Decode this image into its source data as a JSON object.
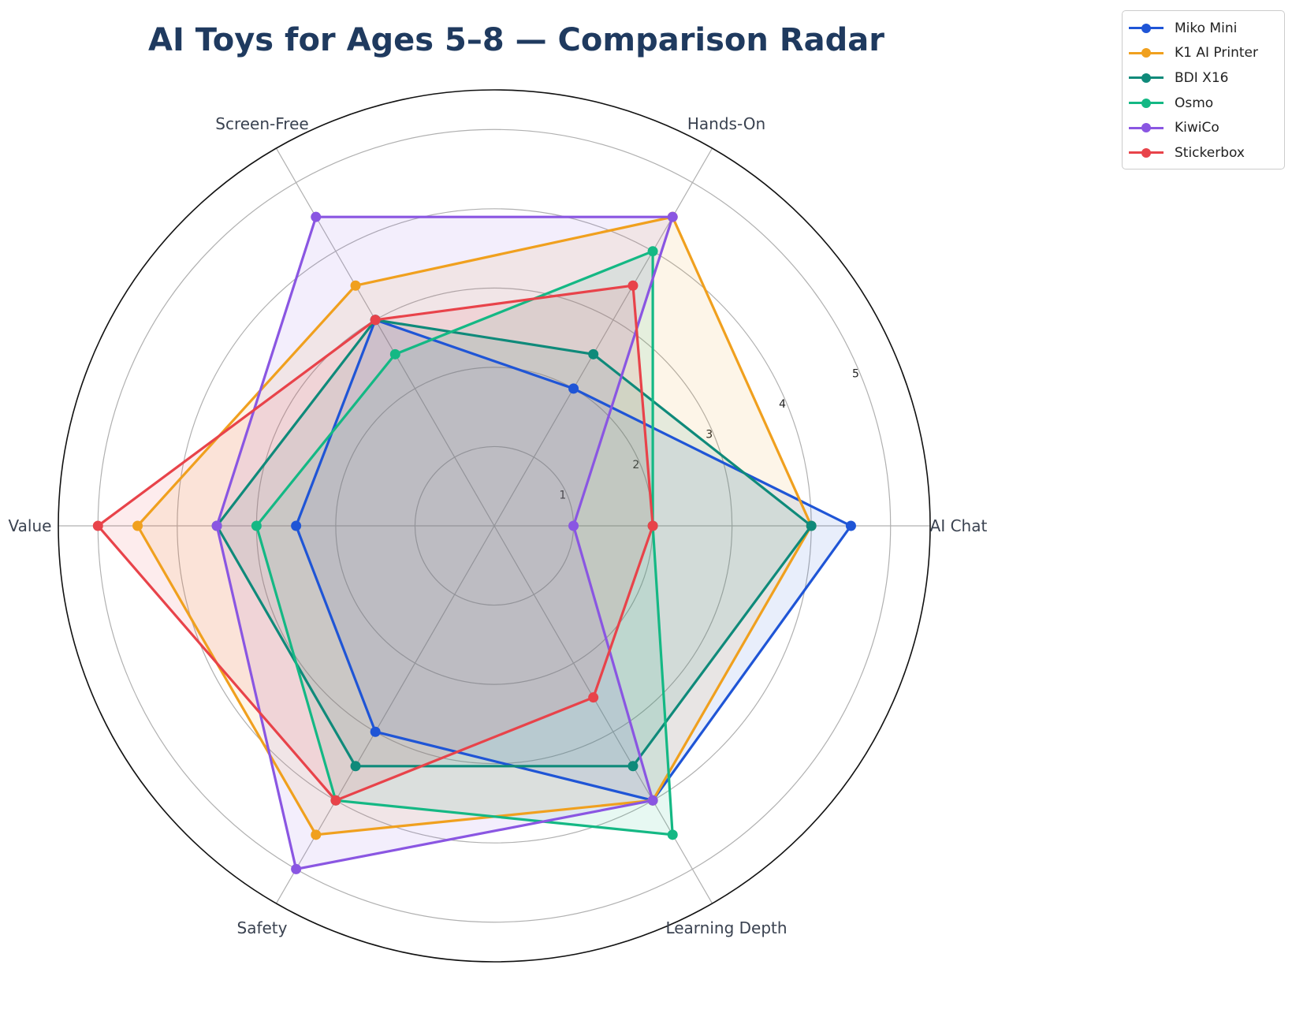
{
  "chart_data": {
    "type": "radar",
    "title": "AI Toys for Ages 5–8 — Comparison Radar",
    "axes": [
      "AI Chat",
      "Hands-On",
      "Screen-Free",
      "Value",
      "Safety",
      "Learning Depth"
    ],
    "rlim": [
      0,
      5.5
    ],
    "rticks": [
      1,
      2,
      3,
      4,
      5
    ],
    "grid": true,
    "legend_position": "top-right",
    "series": [
      {
        "name": "Miko Mini",
        "color": "#1f55d6",
        "values": [
          4.5,
          2.0,
          3.0,
          2.5,
          3.0,
          4.0
        ]
      },
      {
        "name": "K1 AI Printer",
        "color": "#f0a01e",
        "values": [
          4.0,
          4.5,
          3.5,
          4.5,
          4.5,
          4.0
        ]
      },
      {
        "name": "BDI X16",
        "color": "#0f8a7a",
        "values": [
          4.0,
          2.5,
          3.0,
          3.5,
          3.5,
          3.5
        ]
      },
      {
        "name": "Osmo",
        "color": "#14b884",
        "values": [
          2.0,
          4.0,
          2.5,
          3.0,
          4.0,
          4.5
        ]
      },
      {
        "name": "KiwiCo",
        "color": "#8a56e2",
        "values": [
          1.0,
          4.5,
          4.5,
          3.5,
          5.0,
          4.0
        ]
      },
      {
        "name": "Stickerbox",
        "color": "#e8434a",
        "values": [
          2.0,
          3.5,
          3.0,
          5.0,
          4.0,
          2.5
        ]
      }
    ]
  }
}
